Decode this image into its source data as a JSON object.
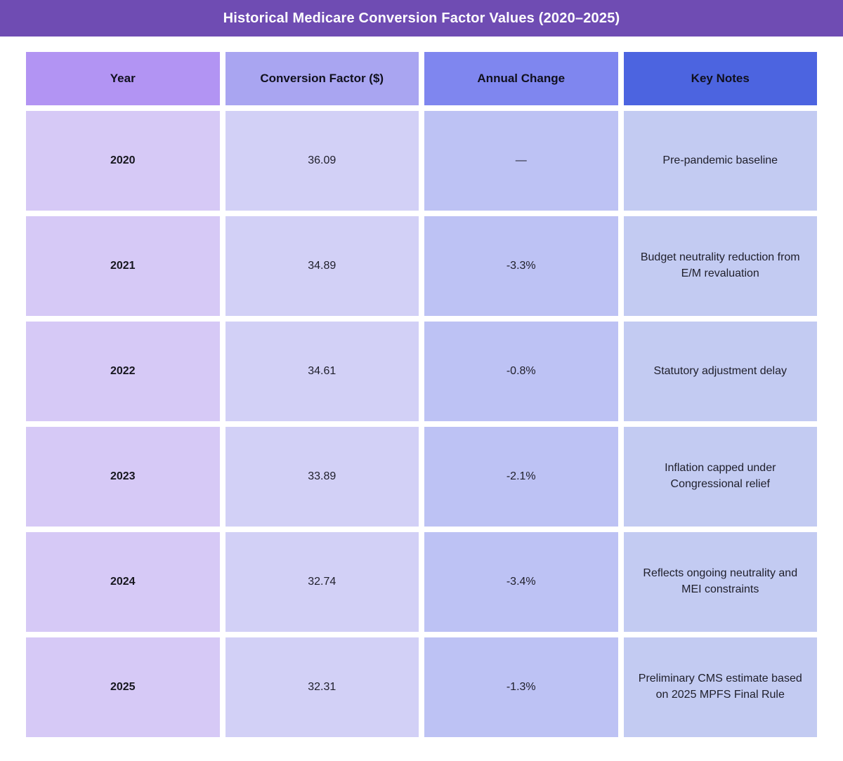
{
  "title": "Historical Medicare Conversion Factor Values (2020–2025)",
  "colors": {
    "title_bar": "#6F4CB3",
    "header_year": "#B294F3",
    "header_cf": "#A9A5F1",
    "header_change": "#7F86EF",
    "header_notes": "#4C64E0",
    "cell_year": "#D6C9F6",
    "cell_cf": "#D2D0F6",
    "cell_change": "#BDC2F4",
    "cell_notes": "#C3CBF2"
  },
  "table": {
    "headers": [
      "Year",
      "Conversion Factor ($)",
      "Annual Change",
      "Key Notes"
    ],
    "rows": [
      {
        "year": "2020",
        "cf": "36.09",
        "change": "—",
        "notes": "Pre-pandemic baseline"
      },
      {
        "year": "2021",
        "cf": "34.89",
        "change": "-3.3%",
        "notes": "Budget neutrality reduction from E/M revaluation"
      },
      {
        "year": "2022",
        "cf": "34.61",
        "change": "-0.8%",
        "notes": "Statutory adjustment delay"
      },
      {
        "year": "2023",
        "cf": "33.89",
        "change": "-2.1%",
        "notes": "Inflation capped under Congressional relief"
      },
      {
        "year": "2024",
        "cf": "32.74",
        "change": "-3.4%",
        "notes": "Reflects ongoing neutrality and MEI constraints"
      },
      {
        "year": "2025",
        "cf": "32.31",
        "change": "-1.3%",
        "notes": "Preliminary CMS estimate based on 2025 MPFS Final Rule"
      }
    ]
  },
  "chart_data": {
    "type": "table",
    "title": "Historical Medicare Conversion Factor Values (2020–2025)",
    "columns": [
      "Year",
      "Conversion Factor ($)",
      "Annual Change",
      "Key Notes"
    ],
    "x": [
      2020,
      2021,
      2022,
      2023,
      2024,
      2025
    ],
    "series": [
      {
        "name": "Conversion Factor ($)",
        "values": [
          36.09,
          34.89,
          34.61,
          33.89,
          32.74,
          32.31
        ]
      },
      {
        "name": "Annual Change (%)",
        "values": [
          null,
          -3.3,
          -0.8,
          -2.1,
          -3.4,
          -1.3
        ]
      }
    ],
    "annotations": [
      "Pre-pandemic baseline",
      "Budget neutrality reduction from E/M revaluation",
      "Statutory adjustment delay",
      "Inflation capped under Congressional relief",
      "Reflects ongoing neutrality and MEI constraints",
      "Preliminary CMS estimate based on 2025 MPFS Final Rule"
    ]
  }
}
